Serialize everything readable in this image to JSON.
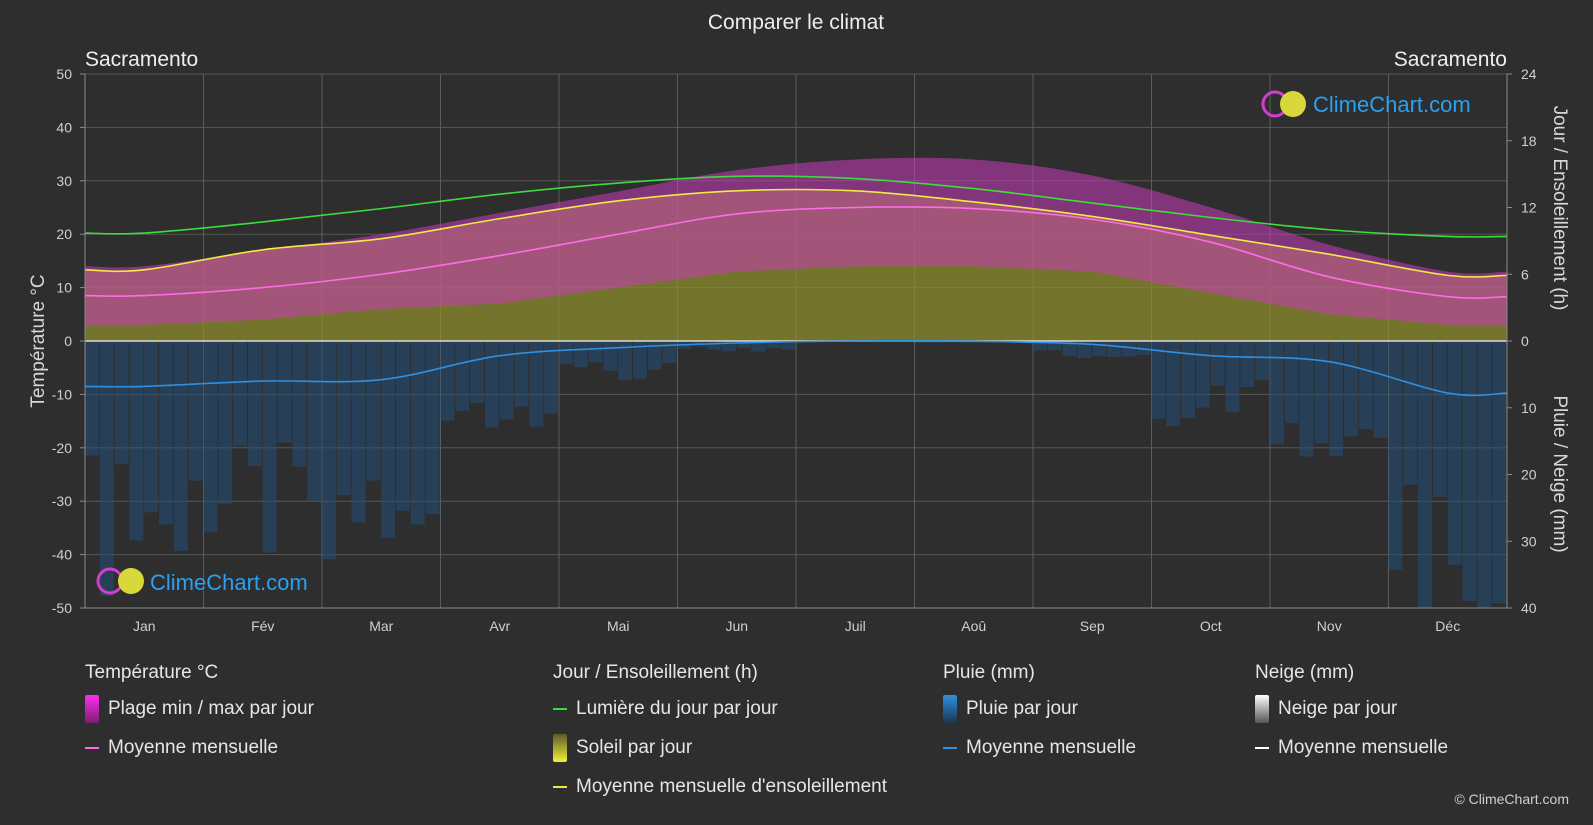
{
  "title": "Comparer le climat",
  "location_left": "Sacramento",
  "location_right": "Sacramento",
  "brand": "ClimeChart.com",
  "copyright": "© ClimeChart.com",
  "chart_data": {
    "type": "area",
    "months": [
      "Jan",
      "Fév",
      "Mar",
      "Avr",
      "Mai",
      "Jun",
      "Juil",
      "Aoû",
      "Sep",
      "Oct",
      "Nov",
      "Déc"
    ],
    "y_left": {
      "label": "Température °C",
      "range": [
        -50,
        50
      ],
      "ticks": [
        50,
        40,
        30,
        20,
        10,
        0,
        -10,
        -20,
        -30,
        -40,
        -50
      ]
    },
    "y_right_top": {
      "label": "Jour / Ensoleillement (h)",
      "range": [
        0,
        24
      ],
      "ticks": [
        24,
        18,
        12,
        6,
        0
      ]
    },
    "y_right_bottom": {
      "label": "Pluie / Neige (mm)",
      "range": [
        0,
        40
      ],
      "ticks": [
        0,
        10,
        20,
        30,
        40
      ]
    },
    "series": [
      {
        "name": "Lumière du jour par jour",
        "unit": "h",
        "color": "#3ddc3d",
        "values": [
          9.7,
          10.7,
          11.9,
          13.2,
          14.2,
          14.8,
          14.6,
          13.7,
          12.4,
          11.1,
          10.0,
          9.4
        ]
      },
      {
        "name": "Moyenne mensuelle d'ensoleillement",
        "unit": "h",
        "color": "#f2e84a",
        "values": [
          6.4,
          8.2,
          9.2,
          11.0,
          12.6,
          13.5,
          13.5,
          12.5,
          11.2,
          9.5,
          7.8,
          5.9
        ]
      },
      {
        "name": "Soleil par jour",
        "unit": "h",
        "color": "#b8b832",
        "values": [
          6.4,
          8.2,
          9.2,
          11.0,
          12.6,
          13.5,
          13.5,
          12.5,
          11.2,
          9.5,
          7.8,
          5.9
        ]
      },
      {
        "name": "Température moyenne mensuelle",
        "unit": "°C",
        "color": "#ff6be8",
        "values": [
          8.5,
          10.0,
          12.5,
          16.0,
          20.0,
          23.8,
          25.0,
          24.8,
          22.8,
          18.5,
          12.0,
          8.3
        ]
      },
      {
        "name": "Plage min / max par jour (max)",
        "unit": "°C",
        "color": "#d63cc8",
        "values": [
          14,
          17,
          20,
          24,
          28,
          32,
          34,
          34,
          31,
          25,
          18,
          13
        ]
      },
      {
        "name": "Plage min / max par jour (min)",
        "unit": "°C",
        "color": "#d63cc8",
        "values": [
          3,
          4,
          6,
          7,
          10,
          13,
          14,
          14,
          13,
          9,
          5,
          3
        ]
      },
      {
        "name": "Pluie moyenne mensuelle",
        "unit": "mm",
        "color": "#2f8fe0",
        "values": [
          6.8,
          6.0,
          5.8,
          2.2,
          1.0,
          0.3,
          0.0,
          0.05,
          0.5,
          2.2,
          3.1,
          7.8
        ]
      }
    ]
  },
  "legend": {
    "temp": {
      "header": "Température °C",
      "range": "Plage min / max par jour",
      "mean": "Moyenne mensuelle"
    },
    "sun": {
      "header": "Jour / Ensoleillement (h)",
      "daylight": "Lumière du jour par jour",
      "sunshine": "Soleil par jour",
      "sunmean": "Moyenne mensuelle d'ensoleillement"
    },
    "rain": {
      "header": "Pluie (mm)",
      "daily": "Pluie par jour",
      "mean": "Moyenne mensuelle"
    },
    "snow": {
      "header": "Neige (mm)",
      "daily": "Neige par jour",
      "mean": "Moyenne mensuelle"
    }
  },
  "colors": {
    "background": "#2e2e2e",
    "grid": "#5a5a5a",
    "temp_range": "#c83cb9",
    "sunshine": "#a3a32a",
    "rain": "#2f7fc0"
  }
}
